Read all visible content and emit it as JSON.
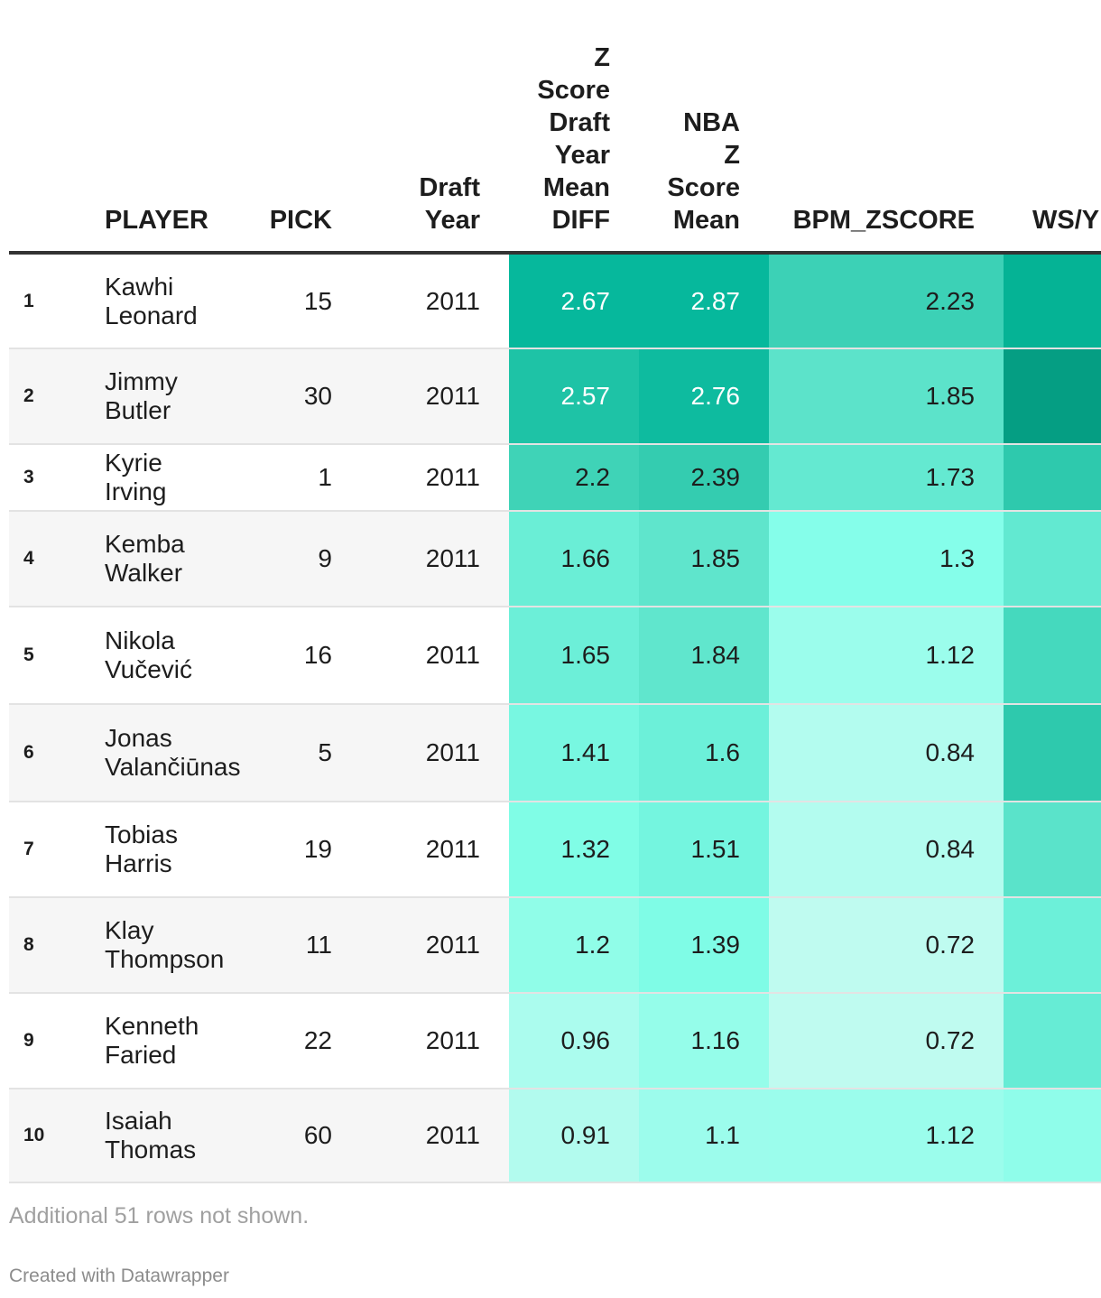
{
  "chart_data": {
    "type": "table",
    "columns": [
      "",
      "PLAYER",
      "PICK",
      "Draft\nYear",
      "Z\nScore\nDraft\nYear\nMean\nDIFF",
      "NBA\nZ\nScore\nMean",
      "BPM_ZSCORE",
      "WS/Y"
    ],
    "rows": [
      {
        "rank": "1",
        "player": "Kawhi\nLeonard",
        "pick": "15",
        "year": "2011",
        "zdiff": "2.67",
        "nba": "2.87",
        "bpm": "2.23",
        "ws": ""
      },
      {
        "rank": "2",
        "player": "Jimmy\nButler",
        "pick": "30",
        "year": "2011",
        "zdiff": "2.57",
        "nba": "2.76",
        "bpm": "1.85",
        "ws": ""
      },
      {
        "rank": "3",
        "player": "Kyrie Irving",
        "pick": "1",
        "year": "2011",
        "zdiff": "2.2",
        "nba": "2.39",
        "bpm": "1.73",
        "ws": ""
      },
      {
        "rank": "4",
        "player": "Kemba\nWalker",
        "pick": "9",
        "year": "2011",
        "zdiff": "1.66",
        "nba": "1.85",
        "bpm": "1.3",
        "ws": ""
      },
      {
        "rank": "5",
        "player": "Nikola\nVučević",
        "pick": "16",
        "year": "2011",
        "zdiff": "1.65",
        "nba": "1.84",
        "bpm": "1.12",
        "ws": ""
      },
      {
        "rank": "6",
        "player": "Jonas\nValančiūnas",
        "pick": "5",
        "year": "2011",
        "zdiff": "1.41",
        "nba": "1.6",
        "bpm": "0.84",
        "ws": ""
      },
      {
        "rank": "7",
        "player": "Tobias\nHarris",
        "pick": "19",
        "year": "2011",
        "zdiff": "1.32",
        "nba": "1.51",
        "bpm": "0.84",
        "ws": ""
      },
      {
        "rank": "8",
        "player": "Klay\nThompson",
        "pick": "11",
        "year": "2011",
        "zdiff": "1.2",
        "nba": "1.39",
        "bpm": "0.72",
        "ws": ""
      },
      {
        "rank": "9",
        "player": "Kenneth\nFaried",
        "pick": "22",
        "year": "2011",
        "zdiff": "0.96",
        "nba": "1.16",
        "bpm": "0.72",
        "ws": ""
      },
      {
        "rank": "10",
        "player": "Isaiah\nThomas",
        "pick": "60",
        "year": "2011",
        "zdiff": "0.91",
        "nba": "1.1",
        "bpm": "1.12",
        "ws": ""
      }
    ],
    "cell_colors": {
      "zdiff": [
        "#06b89c",
        "#1ec3a6",
        "#3fd3b7",
        "#6aeed6",
        "#6cefd8",
        "#78f7e1",
        "#80fde6",
        "#90fde8",
        "#abfcee",
        "#b2fbee"
      ],
      "nba": [
        "#06b89c",
        "#0ebb9f",
        "#34ccb0",
        "#5fe5cc",
        "#60e6cd",
        "#6cf0d9",
        "#74f5df",
        "#7ffce6",
        "#95fdea",
        "#9cfcec"
      ],
      "bpm": [
        "#3cd1b6",
        "#5ce3ca",
        "#64e9d1",
        "#85feea",
        "#9bfdec",
        "#b3fcef",
        "#b3fcef",
        "#bffbf0",
        "#bffbf0",
        "#9bfdec"
      ],
      "ws": [
        "#05b395",
        "#059e83",
        "#2ec9ad",
        "#62e9d1",
        "#45d9be",
        "#2ec9ad",
        "#5ae3ca",
        "#6cf0d9",
        "#66ecd5",
        "#8ffdea"
      ]
    },
    "dark_text_threshold": 2.5
  },
  "footer": {
    "note": "Additional 51 rows not shown.",
    "credit": "Created with Datawrapper"
  }
}
